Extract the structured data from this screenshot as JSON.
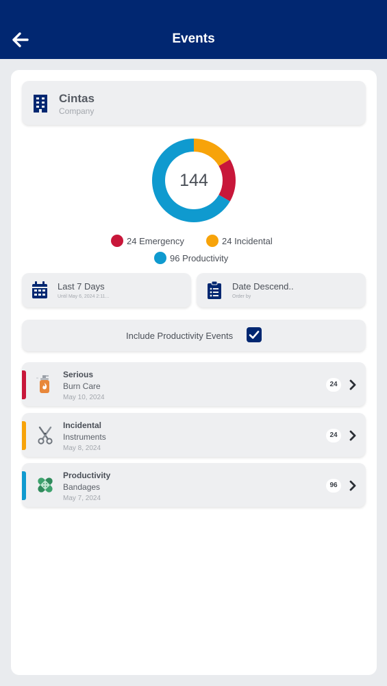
{
  "header": {
    "title": "Events"
  },
  "company": {
    "name": "Cintas",
    "label": "Company"
  },
  "summary": {
    "total": "144"
  },
  "chart_data": {
    "type": "pie",
    "categories": [
      "Emergency",
      "Incidental",
      "Productivity"
    ],
    "values": [
      24,
      24,
      96
    ],
    "colors": [
      "#c8173a",
      "#f7a30a",
      "#0f9acf"
    ],
    "legend": [
      "24 Emergency",
      "24 Incidental",
      "96 Productivity"
    ]
  },
  "filters": {
    "date_range": {
      "label": "Last 7 Days",
      "sub": "Until May 6, 2024 2:11..."
    },
    "sort": {
      "label": "Date Descend..",
      "sub": "Order by"
    }
  },
  "include_toggle": {
    "label": "Include Productivity Events",
    "checked": true
  },
  "events": [
    {
      "type": "Serious",
      "name": "Burn Care",
      "date": "May 10, 2024",
      "count": "24",
      "color": "#c8173a",
      "icon": "burn-care-icon"
    },
    {
      "type": "Incidental",
      "name": "Instruments",
      "date": "May 8, 2024",
      "count": "24",
      "color": "#f7a30a",
      "icon": "scissors-icon"
    },
    {
      "type": "Productivity",
      "name": "Bandages",
      "date": "May 7, 2024",
      "count": "96",
      "color": "#0f9acf",
      "icon": "bandage-icon"
    }
  ]
}
